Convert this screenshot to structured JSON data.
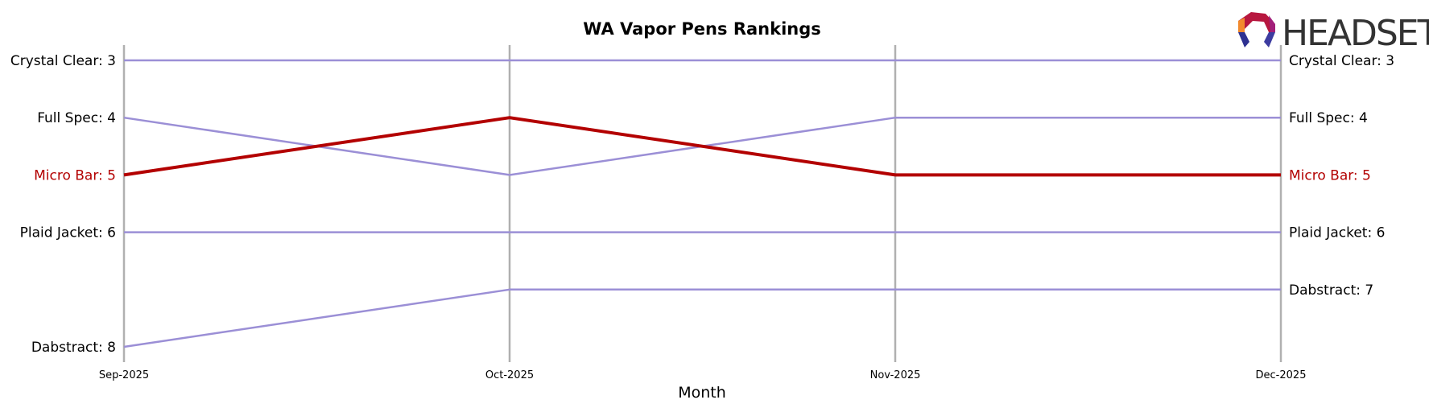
{
  "chart_data": {
    "type": "line",
    "title": "WA Vapor Pens Rankings",
    "xlabel": "Month",
    "ylabel": "",
    "x": [
      "Sep-2025",
      "Oct-2025",
      "Nov-2025",
      "Dec-2025"
    ],
    "y_inverted": true,
    "ylim": [
      8,
      3
    ],
    "grid": "vertical lines at each month",
    "series": [
      {
        "name": "Crystal Clear",
        "values": [
          3,
          3,
          3,
          3
        ],
        "color": "#9b8fd6",
        "highlight": false
      },
      {
        "name": "Full Spec",
        "values": [
          4,
          5,
          4,
          4
        ],
        "color": "#9b8fd6",
        "highlight": false
      },
      {
        "name": "Micro Bar",
        "values": [
          5,
          4,
          5,
          5
        ],
        "color": "#b30000",
        "highlight": true
      },
      {
        "name": "Plaid Jacket",
        "values": [
          6,
          6,
          6,
          6
        ],
        "color": "#9b8fd6",
        "highlight": false
      },
      {
        "name": "Dabstract",
        "values": [
          8,
          7,
          7,
          7
        ],
        "color": "#9b8fd6",
        "highlight": false
      }
    ],
    "start_labels": [
      "Crystal Clear: 3",
      "Full Spec: 4",
      "Micro Bar: 5",
      "Plaid Jacket: 6",
      "Dabstract: 8"
    ],
    "end_labels": [
      "Crystal Clear: 3",
      "Full Spec: 4",
      "Micro Bar: 5",
      "Plaid Jacket: 6",
      "Dabstract: 7"
    ]
  },
  "logo": {
    "text": "HEADSET",
    "icon": "headset-hexagon-logo-icon"
  },
  "colors": {
    "grid": "#b0b0b0",
    "normal_line": "#9b8fd6",
    "highlight_line": "#b30000",
    "text": "#000000"
  }
}
